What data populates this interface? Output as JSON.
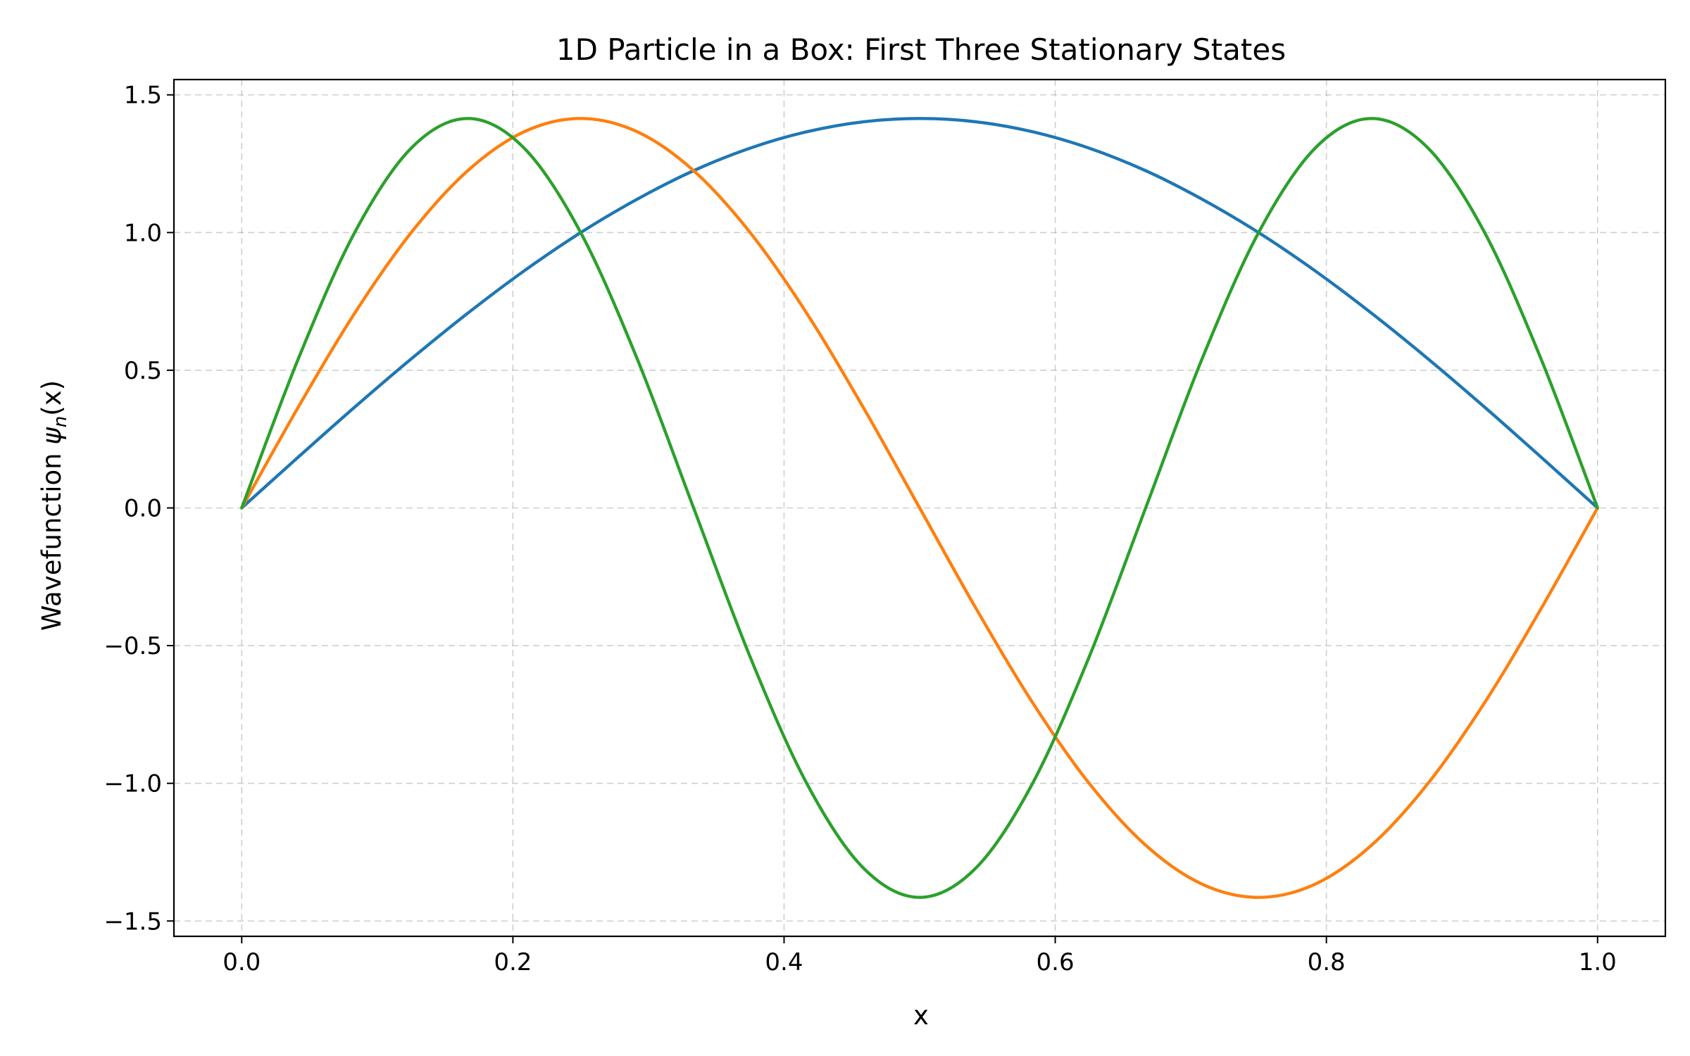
{
  "chart_data": {
    "type": "line",
    "title": "1D Particle in a Box: First Three Stationary States",
    "xlabel": "x",
    "ylabel": {
      "main": "Wavefunction ",
      "psi": "ψ",
      "sub": "n",
      "rest": "(x)"
    },
    "xlim": [
      -0.05,
      1.05
    ],
    "ylim": [
      -1.5556,
      1.5556
    ],
    "x_ticks": [
      {
        "value": 0.0,
        "label": "0.0"
      },
      {
        "value": 0.2,
        "label": "0.2"
      },
      {
        "value": 0.4,
        "label": "0.4"
      },
      {
        "value": 0.6,
        "label": "0.6"
      },
      {
        "value": 0.8,
        "label": "0.8"
      },
      {
        "value": 1.0,
        "label": "1.0"
      }
    ],
    "y_ticks": [
      {
        "value": 1.5,
        "label": "1.5"
      },
      {
        "value": 1.0,
        "label": "1.0"
      },
      {
        "value": 0.5,
        "label": "0.5"
      },
      {
        "value": 0.0,
        "label": "0.0"
      },
      {
        "value": -0.5,
        "label": "−0.5"
      },
      {
        "value": -1.0,
        "label": "−1.0"
      },
      {
        "value": -1.5,
        "label": "−1.5"
      }
    ],
    "grid": true,
    "grid_style": "dashed",
    "legend": "none",
    "x": [
      0.0,
      0.0417,
      0.0833,
      0.125,
      0.1667,
      0.2083,
      0.25,
      0.2917,
      0.3333,
      0.375,
      0.4167,
      0.4583,
      0.5,
      0.5417,
      0.5833,
      0.625,
      0.6667,
      0.7083,
      0.75,
      0.7917,
      0.8333,
      0.875,
      0.9167,
      0.9583,
      1.0
    ],
    "series": [
      {
        "n": 1,
        "color": "#1f77b4",
        "values": [
          0.0,
          0.1846,
          0.366,
          0.5412,
          0.7071,
          0.8609,
          1.0,
          1.1212,
          1.2247,
          1.3066,
          1.366,
          1.4022,
          1.4142,
          1.4022,
          1.366,
          1.3066,
          1.2247,
          1.1212,
          1.0,
          0.8609,
          0.7071,
          0.5412,
          0.366,
          0.1846,
          0.0
        ]
      },
      {
        "n": 2,
        "color": "#ff7f0e",
        "values": [
          0.0,
          0.366,
          0.7071,
          1.0,
          1.2247,
          1.366,
          1.4142,
          1.366,
          1.2247,
          1.0,
          0.7071,
          0.366,
          0.0,
          -0.366,
          -0.7071,
          -1.0,
          -1.2247,
          -1.366,
          -1.4142,
          -1.366,
          -1.2247,
          -1.0,
          -0.7071,
          -0.366,
          0.0
        ]
      },
      {
        "n": 3,
        "color": "#2ca02c",
        "values": [
          0.0,
          0.5412,
          1.0,
          1.3066,
          1.4142,
          1.3066,
          1.0,
          0.5412,
          0.0,
          -0.5412,
          -1.0,
          -1.3066,
          -1.4142,
          -1.3066,
          -1.0,
          -0.5412,
          0.0,
          0.5412,
          1.0,
          1.3066,
          1.4142,
          1.3066,
          1.0,
          0.5412,
          0.0
        ]
      }
    ]
  }
}
